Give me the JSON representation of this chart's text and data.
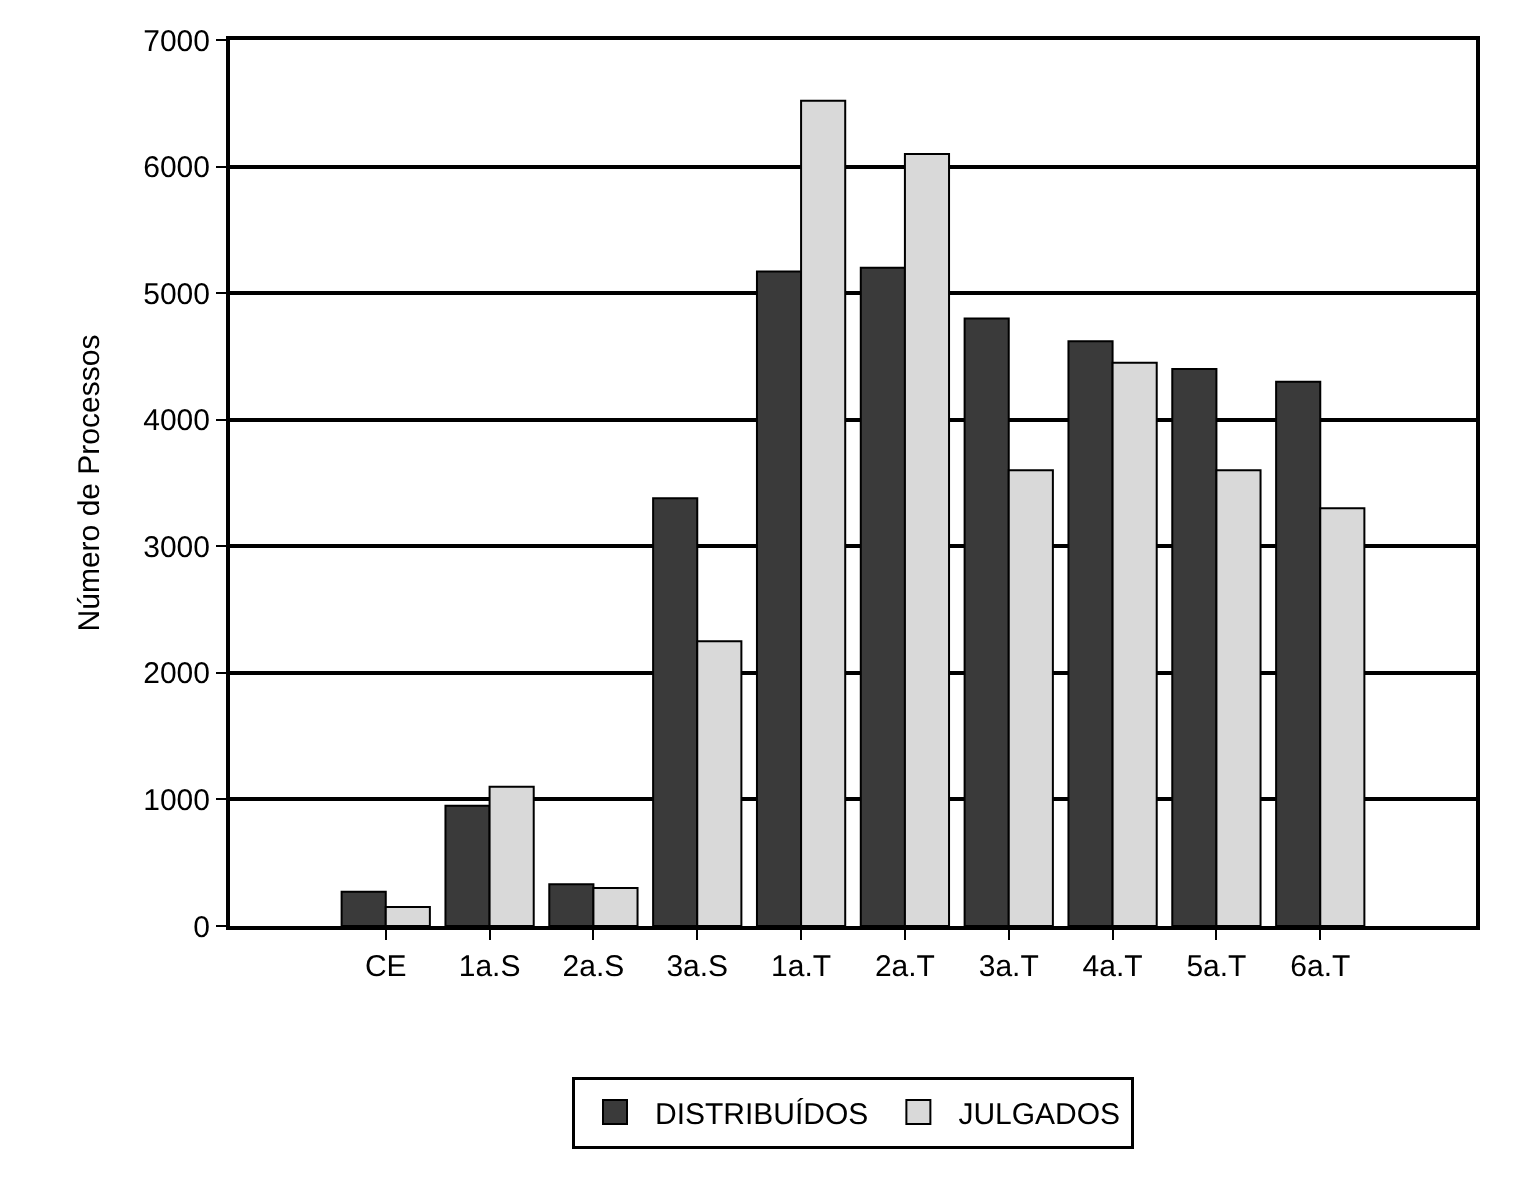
{
  "chart_data": {
    "type": "bar",
    "ylabel": "Número de Processos",
    "categories": [
      null,
      "CE",
      "1a.S",
      "2a.S",
      "3a.S",
      "1a.T",
      "2a.T",
      "3a.T",
      "4a.T",
      "5a.T",
      "6a.T",
      null
    ],
    "series": [
      {
        "name": "DISTRIBUÍDOS",
        "color": "#3a3a3a",
        "values": [
          null,
          270,
          950,
          330,
          3380,
          5170,
          5200,
          4800,
          4620,
          4400,
          4300,
          null
        ]
      },
      {
        "name": "JULGADOS",
        "color": "#d9d9d9",
        "values": [
          null,
          150,
          1100,
          300,
          2250,
          6520,
          6100,
          3600,
          4450,
          3600,
          3300,
          null
        ]
      }
    ],
    "ylim": [
      0,
      7000
    ],
    "yticks": [
      0,
      1000,
      2000,
      3000,
      4000,
      5000,
      6000,
      7000
    ],
    "grid": "y",
    "legend": "bottom"
  }
}
